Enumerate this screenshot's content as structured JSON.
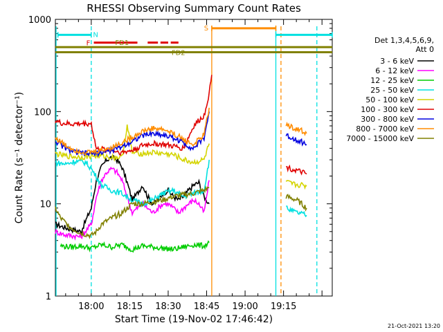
{
  "chart_data": {
    "type": "line",
    "title": "RHESSI Observing Summary Count Rates",
    "xlabel": "Start Time (19-Nov-02 17:46:42)",
    "ylabel": "Count Rate (s⁻¹ detector⁻¹)",
    "yscale": "log",
    "ylim": [
      1,
      1000
    ],
    "xlim_minutes": [
      -14,
      94
    ],
    "x_ticks": [
      {
        "minute": 0,
        "label": "18:00"
      },
      {
        "minute": 15,
        "label": "18:15"
      },
      {
        "minute": 30,
        "label": "18:30"
      },
      {
        "minute": 45,
        "label": "18:45"
      },
      {
        "minute": 60,
        "label": "19:00"
      },
      {
        "minute": 75,
        "label": "19:15"
      }
    ],
    "y_ticks": [
      {
        "value": 1,
        "label": "1"
      },
      {
        "value": 10,
        "label": "10"
      },
      {
        "value": 100,
        "label": "100"
      },
      {
        "value": 1000,
        "label": "1000"
      }
    ],
    "legend": {
      "placement": "right",
      "header": [
        "Det 1,3,4,5,6,9,",
        "Att 0"
      ],
      "entries": [
        {
          "name": "3 - 6 keV",
          "color": "#000000"
        },
        {
          "name": "6 - 12 keV",
          "color": "#ff00ff"
        },
        {
          "name": "12 - 25 keV",
          "color": "#00cc00"
        },
        {
          "name": "25 - 50 keV",
          "color": "#00e0e0"
        },
        {
          "name": "50 - 100 keV",
          "color": "#d4d400"
        },
        {
          "name": "100 - 300 keV",
          "color": "#e00000"
        },
        {
          "name": "300 - 800 keV",
          "color": "#0000e0"
        },
        {
          "name": "800 - 7000 keV",
          "color": "#ff8c00"
        },
        {
          "name": "7000 - 15000 keV",
          "color": "#808000"
        }
      ]
    },
    "series": [
      {
        "name": "3 - 6 keV",
        "color": "#000000",
        "x": [
          -14,
          -10,
          -4,
          0,
          2,
          4,
          6,
          8,
          10,
          12,
          14,
          16,
          18,
          20,
          22,
          24,
          26,
          28,
          30,
          32,
          34,
          36,
          38,
          40,
          42,
          44,
          46
        ],
        "y": [
          6,
          5.5,
          5,
          9,
          18,
          25,
          30,
          32,
          30,
          25,
          17,
          11,
          13,
          16,
          12,
          10,
          11,
          13,
          14,
          12,
          11,
          12,
          14,
          16,
          17,
          12,
          10
        ]
      },
      {
        "name": "6 - 12 keV",
        "color": "#ff00ff",
        "x": [
          -14,
          -10,
          -4,
          0,
          2,
          4,
          6,
          8,
          10,
          12,
          14,
          16,
          18,
          20,
          22,
          24,
          26,
          28,
          30,
          32,
          34,
          36,
          38,
          40,
          42,
          44,
          46
        ],
        "y": [
          5,
          4.6,
          4.4,
          6,
          12,
          18,
          22,
          24,
          22,
          18,
          12,
          8,
          9,
          10,
          9,
          8,
          9,
          10,
          10,
          9,
          8,
          9,
          10,
          11,
          10,
          8,
          18
        ]
      },
      {
        "name": "12 - 25 keV",
        "color": "#00cc00",
        "x": [
          -12,
          -8,
          -4,
          0,
          4,
          8,
          12,
          16,
          20,
          24,
          28,
          32,
          36,
          40,
          44,
          46
        ],
        "y": [
          3.5,
          3.4,
          3.5,
          3.3,
          3.6,
          3.4,
          3.6,
          3.2,
          3.5,
          3.4,
          3.3,
          3.2,
          3.4,
          3.6,
          3.5,
          3.8
        ]
      },
      {
        "name": "25 - 50 keV",
        "color": "#00e0e0",
        "x": [
          -14,
          -10,
          -6,
          -2,
          0,
          4,
          8,
          12,
          16,
          20,
          24,
          28,
          32,
          36,
          40,
          44,
          46,
          76,
          78,
          80,
          82,
          84
        ],
        "y": [
          28,
          27,
          29,
          28,
          24,
          16,
          14,
          13,
          11,
          10,
          11,
          13,
          14,
          12,
          13,
          14,
          30,
          9,
          8.5,
          8,
          7.8,
          7.5
        ]
      },
      {
        "name": "50 - 100 keV",
        "color": "#d4d400",
        "x": [
          -14,
          -10,
          -4,
          0,
          4,
          8,
          12,
          14,
          16,
          20,
          24,
          28,
          32,
          36,
          40,
          44,
          46,
          76,
          78,
          80,
          82,
          84
        ],
        "y": [
          35,
          33,
          32,
          33,
          33,
          32,
          32,
          70,
          36,
          35,
          36,
          35,
          34,
          30,
          28,
          30,
          45,
          17,
          16.5,
          16,
          16,
          15.5
        ]
      },
      {
        "name": "100 - 300 keV",
        "color": "#e00000",
        "x": [
          -14,
          -12,
          -8,
          -4,
          0,
          2,
          4,
          8,
          12,
          16,
          20,
          24,
          28,
          32,
          36,
          40,
          42,
          44,
          46,
          47,
          76,
          78,
          80,
          82,
          84
        ],
        "y": [
          80,
          75,
          73,
          74,
          74,
          39,
          39,
          38,
          36,
          38,
          43,
          45,
          44,
          42,
          40,
          70,
          80,
          90,
          160,
          250,
          25,
          24,
          23,
          22,
          21
        ]
      },
      {
        "name": "300 - 800 keV",
        "color": "#0000e0",
        "x": [
          -14,
          -10,
          -6,
          -2,
          0,
          4,
          8,
          12,
          16,
          20,
          24,
          28,
          32,
          36,
          38,
          40,
          44,
          46,
          76,
          78,
          80,
          82,
          84
        ],
        "y": [
          48,
          40,
          36,
          35,
          35,
          36,
          38,
          42,
          48,
          55,
          58,
          56,
          52,
          46,
          42,
          40,
          52,
          100,
          55,
          52,
          50,
          47,
          44
        ]
      },
      {
        "name": "800 - 7000 keV",
        "color": "#ff8c00",
        "x": [
          -14,
          -10,
          -6,
          -2,
          0,
          4,
          8,
          12,
          16,
          20,
          24,
          28,
          32,
          36,
          38,
          40,
          44,
          46,
          76,
          78,
          80,
          82,
          84
        ],
        "y": [
          52,
          43,
          38,
          36,
          36,
          38,
          41,
          46,
          53,
          61,
          66,
          64,
          58,
          50,
          46,
          44,
          56,
          110,
          72,
          68,
          65,
          62,
          58
        ]
      },
      {
        "name": "7000 - 15000 keV",
        "color": "#808000",
        "x": [
          -14,
          -12,
          -8,
          -4,
          0,
          2,
          4,
          8,
          12,
          16,
          20,
          24,
          28,
          32,
          36,
          40,
          44,
          46,
          76,
          78,
          80,
          82,
          84
        ],
        "y": [
          9,
          7,
          5.5,
          4.8,
          4.5,
          5,
          6,
          7,
          8,
          10,
          10,
          10.5,
          11,
          12,
          12.5,
          13,
          14,
          15,
          12,
          11.5,
          11,
          10,
          9
        ]
      }
    ],
    "state_bars": [
      {
        "label": "N",
        "color": "#00e0e0",
        "y": 680,
        "segments": [
          [
            -13,
            0
          ],
          [
            72,
            94
          ]
        ]
      },
      {
        "label": "S",
        "color": "#ff8c00",
        "y": 800,
        "segments": [
          [
            47,
            72
          ]
        ]
      },
      {
        "label": "F",
        "color": "#e00000",
        "y": 560,
        "dashed_after": 22,
        "segments": [
          [
            1,
            18
          ],
          [
            22,
            26
          ],
          [
            27,
            30
          ],
          [
            31,
            34
          ]
        ]
      },
      {
        "label": "FD1",
        "color": "#808000",
        "y": 500,
        "segments": [
          [
            -14,
            94
          ]
        ]
      },
      {
        "label": "FD2",
        "color": "#808000",
        "y": 440,
        "segments": [
          [
            -14,
            94
          ]
        ]
      }
    ],
    "vertical_markers": [
      {
        "minute": -14,
        "color": "#00e0e0",
        "style": "solid"
      },
      {
        "minute": 0,
        "color": "#00e0e0",
        "style": "dashed"
      },
      {
        "minute": 47,
        "color": "#ff8c00",
        "style": "solid"
      },
      {
        "minute": 72,
        "color": "#00e0e0",
        "style": "solid"
      },
      {
        "minute": 74,
        "color": "#ff8c00",
        "style": "dashed"
      },
      {
        "minute": 88,
        "color": "#00e0e0",
        "style": "dashed"
      }
    ],
    "footer_date": "21-Oct-2021 13:20"
  }
}
